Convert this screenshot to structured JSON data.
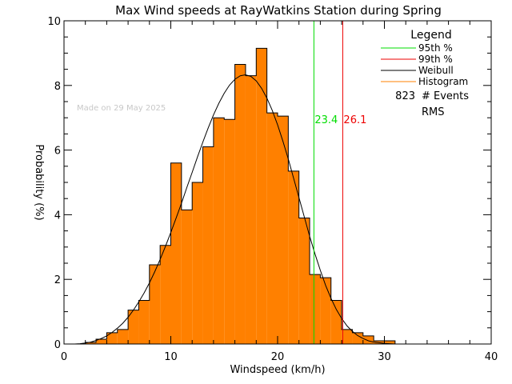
{
  "chart_data": {
    "type": "bar",
    "title": "Max Wind speeds at RayWatkins Station during Spring",
    "xlabel": "Windspeed (km/h)",
    "ylabel": "Probability (%)",
    "xlim": [
      0,
      40
    ],
    "ylim": [
      0,
      10
    ],
    "x_ticks": [
      "0",
      "10",
      "20",
      "30",
      "40"
    ],
    "y_ticks": [
      "0",
      "2",
      "4",
      "6",
      "8",
      "10"
    ],
    "watermark": "Made on 29 May 2025",
    "bin_width": 1,
    "bins": [
      {
        "x0": 2,
        "value": 0.05
      },
      {
        "x0": 3,
        "value": 0.15
      },
      {
        "x0": 4,
        "value": 0.35
      },
      {
        "x0": 5,
        "value": 0.45
      },
      {
        "x0": 6,
        "value": 1.05
      },
      {
        "x0": 7,
        "value": 1.35
      },
      {
        "x0": 8,
        "value": 2.45
      },
      {
        "x0": 9,
        "value": 3.05
      },
      {
        "x0": 10,
        "value": 5.6
      },
      {
        "x0": 11,
        "value": 4.15
      },
      {
        "x0": 12,
        "value": 5.0
      },
      {
        "x0": 13,
        "value": 6.1
      },
      {
        "x0": 14,
        "value": 7.0
      },
      {
        "x0": 15,
        "value": 6.95
      },
      {
        "x0": 16,
        "value": 8.65
      },
      {
        "x0": 17,
        "value": 8.3
      },
      {
        "x0": 18,
        "value": 9.15
      },
      {
        "x0": 19,
        "value": 7.15
      },
      {
        "x0": 20,
        "value": 7.05
      },
      {
        "x0": 21,
        "value": 5.35
      },
      {
        "x0": 22,
        "value": 3.9
      },
      {
        "x0": 23,
        "value": 2.15
      },
      {
        "x0": 24,
        "value": 2.05
      },
      {
        "x0": 25,
        "value": 1.35
      },
      {
        "x0": 26,
        "value": 0.45
      },
      {
        "x0": 27,
        "value": 0.35
      },
      {
        "x0": 28,
        "value": 0.25
      },
      {
        "x0": 29,
        "value": 0.1
      },
      {
        "x0": 30,
        "value": 0.1
      }
    ],
    "weibull_curve": {
      "x": [
        1.0,
        1.5,
        2.0,
        2.5,
        3.0,
        3.5,
        4.0,
        4.5,
        5.0,
        5.5,
        6.0,
        6.5,
        7.0,
        7.5,
        8.0,
        8.5,
        9.0,
        9.5,
        10.0,
        10.5,
        11.0,
        11.5,
        12.0,
        12.5,
        13.0,
        13.5,
        14.0,
        14.5,
        15.0,
        15.5,
        16.0,
        16.5,
        17.0,
        17.5,
        18.0,
        18.5,
        19.0,
        19.5,
        20.0,
        20.5,
        21.0,
        21.5,
        22.0,
        22.5,
        23.0,
        23.5,
        24.0,
        24.5,
        25.0,
        25.5,
        26.0,
        26.5,
        27.0,
        27.5,
        28.0,
        28.5,
        29.0,
        29.5,
        30.0,
        30.5,
        31.0,
        31.5,
        32.0
      ],
      "y": [
        0.0,
        0.01,
        0.03,
        0.06,
        0.11,
        0.17,
        0.25,
        0.36,
        0.49,
        0.64,
        0.83,
        1.05,
        1.3,
        1.58,
        1.89,
        2.24,
        2.62,
        3.02,
        3.45,
        3.9,
        4.36,
        4.84,
        5.31,
        5.79,
        6.25,
        6.68,
        7.09,
        7.45,
        7.76,
        8.01,
        8.19,
        8.3,
        8.33,
        8.28,
        8.14,
        7.91,
        7.61,
        7.23,
        6.78,
        6.27,
        5.72,
        5.13,
        4.53,
        3.93,
        3.34,
        2.79,
        2.28,
        1.81,
        1.41,
        1.07,
        0.79,
        0.56,
        0.39,
        0.26,
        0.17,
        0.1,
        0.06,
        0.04,
        0.02,
        0.01,
        0.0,
        0.0,
        0.0
      ]
    },
    "percentiles": {
      "p95": {
        "x": 23.4,
        "label": "23.4"
      },
      "p99": {
        "x": 26.1,
        "label": "26.1"
      }
    },
    "legend": {
      "title": "Legend",
      "entries": [
        {
          "label": "95th %",
          "color": "#00dd00"
        },
        {
          "label": "99th %",
          "color": "#ee0000"
        },
        {
          "label": "Weibull",
          "color": "#000000"
        },
        {
          "label": "Histogram",
          "color": "#ff8000"
        }
      ],
      "events_count": "823",
      "events_label": "# Events",
      "rms_label": "RMS",
      "position": "top-right"
    },
    "colors": {
      "histogram_fill": "#ff8000",
      "p95": "#00dd00",
      "p99": "#ee0000",
      "weibull": "#000000"
    }
  }
}
